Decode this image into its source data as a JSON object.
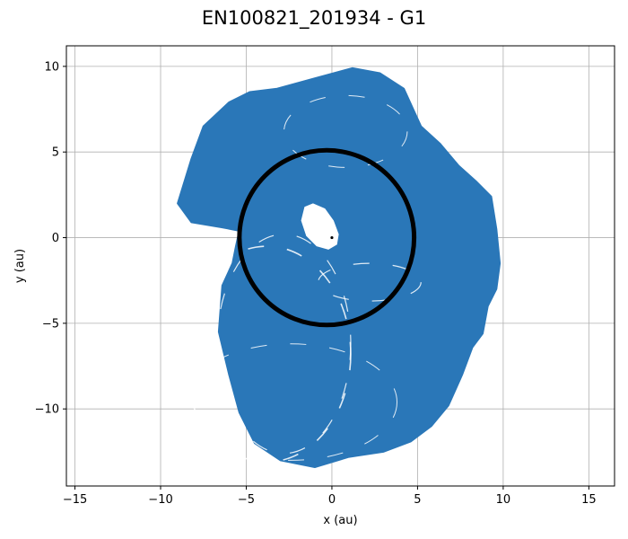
{
  "chart_data": {
    "type": "line",
    "title": "EN100821_201934 - G1",
    "xlabel": "x (au)",
    "ylabel": "y (au)",
    "xlim": [
      -15.5,
      16.5
    ],
    "ylim": [
      -14.5,
      11.2
    ],
    "xticks": [
      -15,
      -10,
      -5,
      0,
      5,
      10,
      15
    ],
    "yticks": [
      -10,
      -5,
      0,
      5,
      10
    ],
    "xtick_labels": [
      "−15",
      "−10",
      "−5",
      "0",
      "5",
      "10",
      "15"
    ],
    "ytick_labels": [
      "−10",
      "−5",
      "0",
      "5",
      "10"
    ],
    "grid": true,
    "colors": {
      "orbit_fill": "#2a77b8",
      "planet_orbit": "#000000",
      "background": "#ffffff",
      "grid": "#b0b0b0"
    },
    "series": [
      {
        "description_kind": "precessing particle orbits",
        "color": "#2a77b8",
        "x": [
          -9.0,
          -8.2,
          -7.5,
          -6.0,
          -4.8,
          -3.2,
          -1.0,
          1.2,
          2.8,
          4.2,
          5.2,
          6.3,
          7.4,
          8.4,
          9.3,
          9.6,
          9.8,
          9.6,
          9.1,
          8.8,
          8.2,
          7.6,
          6.8,
          5.8,
          4.6,
          3.0,
          1.0,
          -1.0,
          -3.0,
          -4.5,
          -5.4,
          -6.0,
          -6.6,
          -6.4,
          -5.8,
          -5.6,
          -5.4,
          -6.4,
          -8.2,
          -9.0
        ],
        "y": [
          2.0,
          4.6,
          6.5,
          7.9,
          8.5,
          8.7,
          9.3,
          9.9,
          9.6,
          8.7,
          6.5,
          5.5,
          4.2,
          3.3,
          2.4,
          0.5,
          -1.5,
          -3.0,
          -4.0,
          -5.6,
          -6.4,
          -8.0,
          -9.8,
          -11.0,
          -11.9,
          -12.5,
          -12.8,
          -13.4,
          -13.0,
          -12.0,
          -10.2,
          -8.0,
          -5.5,
          -2.8,
          -1.5,
          -0.5,
          0.4,
          0.6,
          0.9,
          2.0
        ]
      },
      {
        "description_kind": "reference orbit",
        "color": "#000000",
        "circle_center": [
          -0.3,
          0.0
        ],
        "circle_radius": 5.1
      }
    ],
    "inner_hole": {
      "x": [
        -1.6,
        -1.1,
        -0.4,
        0.1,
        0.4,
        0.3,
        -0.2,
        -0.9,
        -1.5,
        -1.8,
        -1.6
      ],
      "y": [
        1.8,
        2.0,
        1.7,
        1.0,
        0.2,
        -0.4,
        -0.7,
        -0.5,
        0.1,
        1.0,
        1.8
      ]
    }
  }
}
